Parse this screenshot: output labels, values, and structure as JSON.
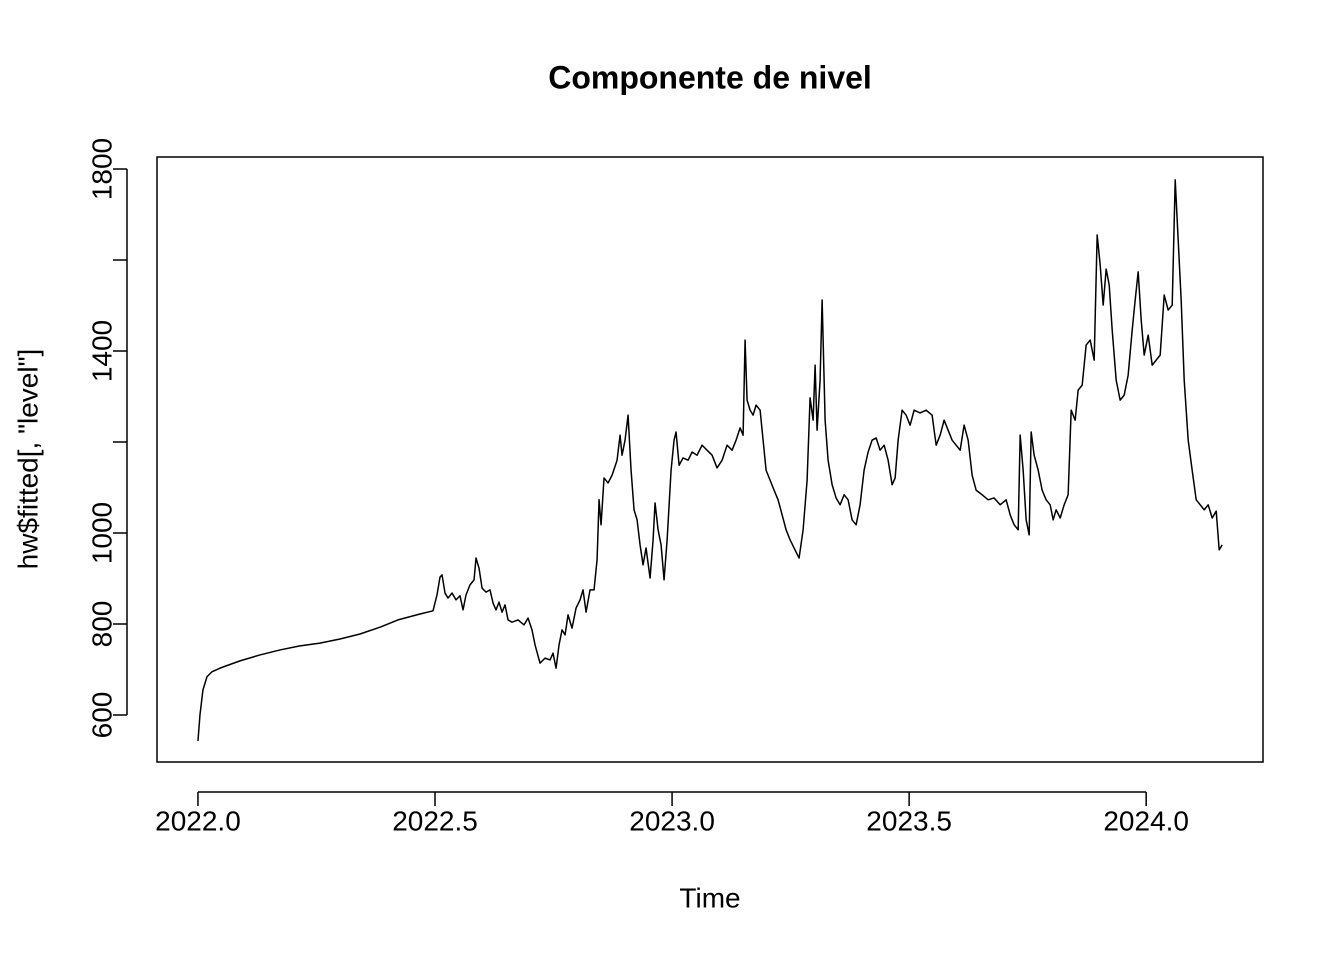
{
  "chart_data": {
    "type": "line",
    "title": "Componente de nivel",
    "x_label": "Time",
    "y_label": "hw$fitted[, \"level\"]",
    "color": "#000000",
    "x": [
      2022.0,
      2022.0042,
      2022.0105,
      2022.019,
      2022.0295,
      2022.0464,
      2022.0886,
      2022.1308,
      2022.173,
      2022.2152,
      2022.2574,
      2022.2996,
      2022.3418,
      2022.384,
      2022.4219,
      2022.4684,
      2022.4958,
      2022.5042,
      2022.5105,
      2022.5148,
      2022.5211,
      2022.5274,
      2022.5359,
      2022.5443,
      2022.5527,
      2022.5591,
      2022.5654,
      2022.5738,
      2022.5823,
      2022.5865,
      2022.5928,
      2022.5992,
      2022.6076,
      2022.616,
      2022.6224,
      2022.6287,
      2022.635,
      2022.6414,
      2022.6477,
      2022.654,
      2022.6624,
      2022.6751,
      2022.6878,
      2022.6962,
      2022.7046,
      2022.711,
      2022.7215,
      2022.7321,
      2022.7426,
      2022.7489,
      2022.7553,
      2022.7616,
      2022.7679,
      2022.7743,
      2022.7806,
      2022.789,
      2022.7975,
      2022.8059,
      2022.8122,
      2022.8186,
      2022.827,
      2022.8354,
      2022.8418,
      2022.846,
      2022.8502,
      2022.8565,
      2022.865,
      2022.8734,
      2022.884,
      2022.8903,
      2022.8945,
      2022.9008,
      2022.9072,
      2022.9135,
      2022.9198,
      2022.9262,
      2022.9325,
      2022.9388,
      2022.9451,
      2022.9536,
      2022.9599,
      2022.9641,
      2022.9705,
      2022.9768,
      2022.9831,
      2022.9895,
      2022.9979,
      2023.0042,
      2023.0084,
      2023.0148,
      2023.0232,
      2023.0338,
      2023.0422,
      2023.0527,
      2023.0633,
      2023.0738,
      2023.0844,
      2023.0949,
      2023.1055,
      2023.116,
      2023.1266,
      2023.135,
      2023.1435,
      2023.1498,
      2023.154,
      2023.1582,
      2023.1646,
      2023.1709,
      2023.1772,
      2023.1857,
      2023.192,
      2023.1983,
      2023.2068,
      2023.2152,
      2023.2236,
      2023.2321,
      2023.2405,
      2023.2489,
      2023.2574,
      2023.2679,
      2023.2764,
      2023.2848,
      2023.2911,
      2023.2975,
      2023.3017,
      2023.3059,
      2023.3122,
      2023.3165,
      2023.3228,
      2023.3291,
      2023.3376,
      2023.346,
      2023.3544,
      2023.3629,
      2023.3713,
      2023.3797,
      2023.3882,
      2023.3966,
      2023.405,
      2023.4135,
      2023.4219,
      2023.4304,
      2023.4388,
      2023.4473,
      2023.4557,
      2023.4641,
      2023.4705,
      2023.4768,
      2023.4852,
      2023.4937,
      2023.5021,
      2023.5105,
      2023.5232,
      2023.5359,
      2023.5485,
      2023.557,
      2023.5654,
      2023.5738,
      2023.5823,
      2023.5907,
      2023.5992,
      2023.6076,
      2023.616,
      2023.6245,
      2023.6329,
      2023.6414,
      2023.654,
      2023.6667,
      2023.6793,
      2023.692,
      2023.7046,
      2023.7131,
      2023.7215,
      2023.73,
      2023.7342,
      2023.7405,
      2023.7468,
      2023.7532,
      2023.7574,
      2023.7637,
      2023.7722,
      2023.7806,
      2023.789,
      2023.7975,
      2023.8038,
      2023.8101,
      2023.8186,
      2023.827,
      2023.8354,
      2023.8418,
      2023.8502,
      2023.8565,
      2023.865,
      2023.8734,
      2023.8819,
      2023.8903,
      2023.8966,
      2023.903,
      2023.9093,
      2023.9156,
      2023.922,
      2023.9283,
      2023.9367,
      2023.9451,
      2023.9536,
      2023.962,
      2023.9705,
      2023.9768,
      2023.9831,
      2023.9895,
      2023.9958,
      2024.0042,
      2024.0127,
      2024.0211,
      2024.0295,
      2024.038,
      2024.0464,
      2024.0549,
      2024.0612,
      2024.0675,
      2024.0738,
      2024.0802,
      2024.0886,
      2024.097,
      2024.1055,
      2024.1139,
      2024.1224,
      2024.1308,
      2024.1392,
      2024.1477,
      2024.154,
      2024.1603
    ],
    "values": [
      543,
      600,
      655,
      684,
      695,
      703,
      719,
      732,
      743,
      752,
      758,
      767,
      778,
      793,
      809,
      822,
      829,
      864,
      903,
      908,
      868,
      857,
      868,
      853,
      862,
      831,
      864,
      886,
      897,
      945,
      923,
      879,
      870,
      875,
      846,
      831,
      848,
      826,
      842,
      809,
      804,
      809,
      798,
      813,
      787,
      754,
      714,
      725,
      721,
      736,
      703,
      754,
      787,
      776,
      820,
      791,
      835,
      853,
      875,
      826,
      875,
      875,
      941,
      1073,
      1018,
      1121,
      1110,
      1127,
      1160,
      1215,
      1171,
      1204,
      1259,
      1138,
      1051,
      1029,
      974,
      930,
      967,
      901,
      984,
      1066,
      1007,
      974,
      897,
      984,
      1138,
      1204,
      1222,
      1149,
      1165,
      1160,
      1178,
      1171,
      1193,
      1182,
      1171,
      1143,
      1160,
      1193,
      1182,
      1204,
      1231,
      1215,
      1424,
      1292,
      1270,
      1259,
      1281,
      1270,
      1204,
      1138,
      1116,
      1094,
      1073,
      1040,
      1007,
      985,
      967,
      945,
      1007,
      1116,
      1297,
      1248,
      1369,
      1226,
      1336,
      1512,
      1248,
      1160,
      1106,
      1077,
      1062,
      1084,
      1073,
      1029,
      1018,
      1062,
      1138,
      1178,
      1204,
      1209,
      1182,
      1193,
      1160,
      1106,
      1121,
      1204,
      1270,
      1259,
      1237,
      1270,
      1264,
      1270,
      1259,
      1193,
      1215,
      1248,
      1226,
      1204,
      1193,
      1182,
      1237,
      1204,
      1127,
      1094,
      1084,
      1073,
      1077,
      1062,
      1073,
      1040,
      1018,
      1007,
      1215,
      1138,
      1029,
      996,
      1222,
      1171,
      1138,
      1094,
      1073,
      1062,
      1029,
      1051,
      1033,
      1062,
      1084,
      1270,
      1248,
      1314,
      1325,
      1413,
      1424,
      1380,
      1655,
      1589,
      1501,
      1580,
      1545,
      1446,
      1336,
      1292,
      1303,
      1347,
      1446,
      1512,
      1574,
      1468,
      1391,
      1435,
      1369,
      1380,
      1391,
      1523,
      1490,
      1501,
      1776,
      1644,
      1512,
      1336,
      1204,
      1138,
      1073,
      1062,
      1051,
      1062,
      1033,
      1048,
      963,
      974
    ],
    "xlim": [
      2021.9136,
      2024.2464
    ],
    "ylim": [
      496.7,
      1826.4
    ],
    "xticks": [
      {
        "value": 2022,
        "label": "2022.0"
      },
      2022.5,
      {
        "value": 2023,
        "label": "2023.0"
      },
      2023.5,
      {
        "value": 2024,
        "label": "2024.0"
      }
    ],
    "yticks": [
      600,
      800,
      1000,
      {
        "value": 1200,
        "label": null
      },
      1400,
      {
        "value": 1600,
        "label": null
      },
      1800
    ]
  }
}
